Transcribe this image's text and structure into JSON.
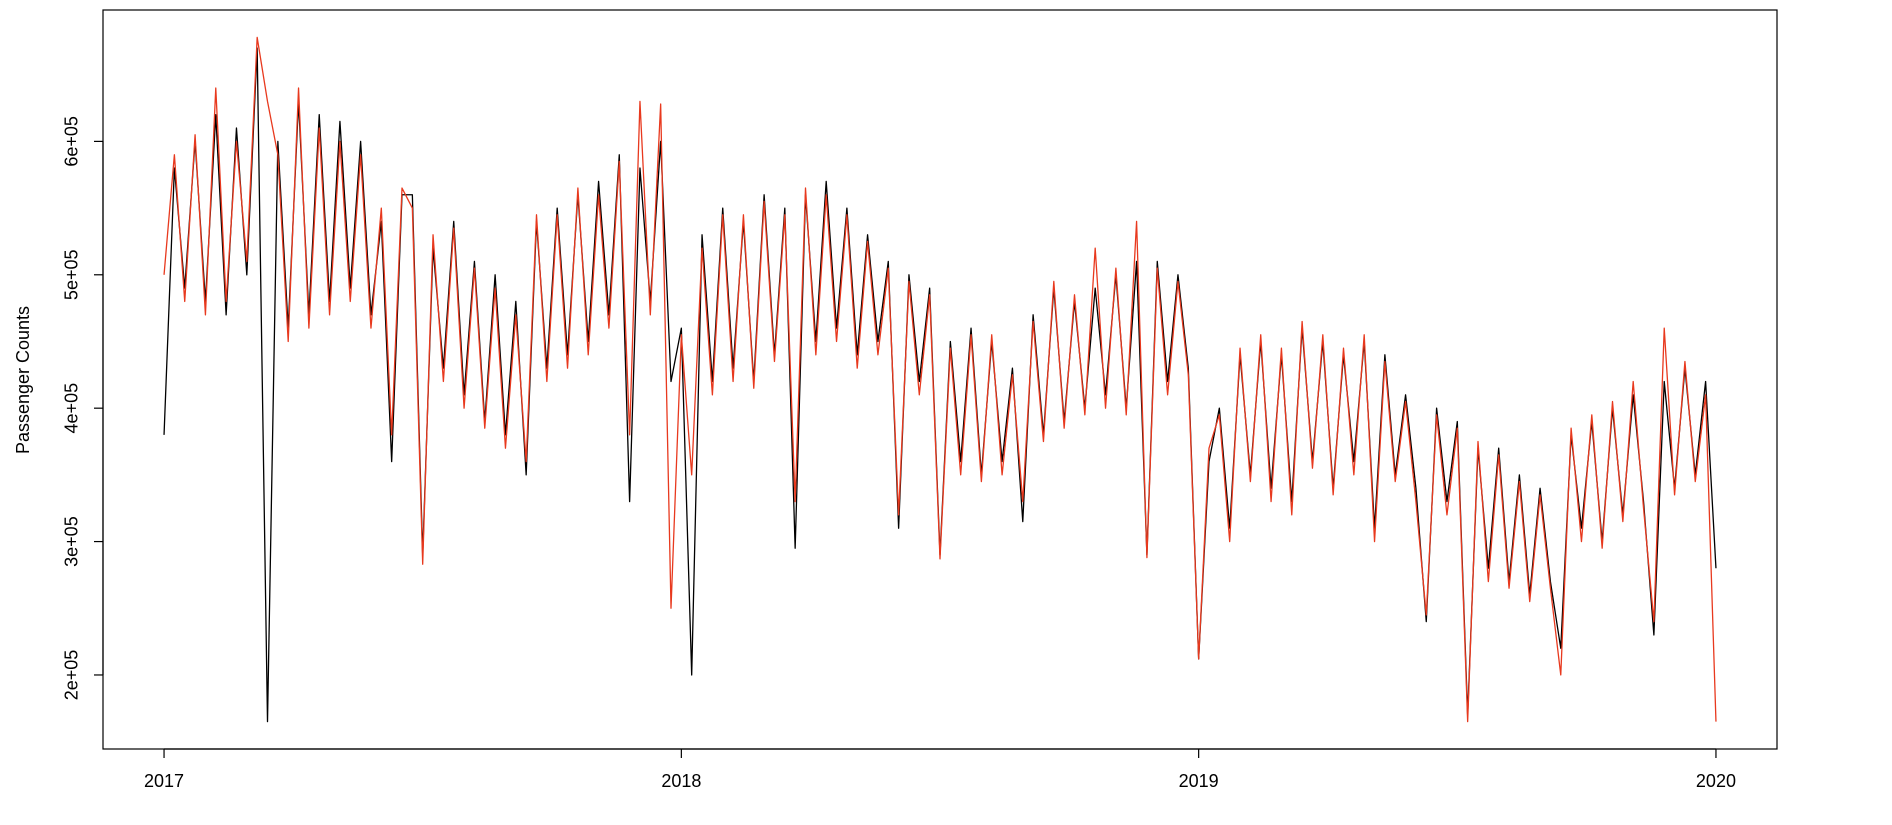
{
  "chart_data": {
    "type": "line",
    "y_label": "Passenger Counts",
    "xlim": [
      2016.882,
      2020.118
    ],
    "xticks": [
      2017,
      2018,
      2019,
      2020
    ],
    "ylim": [
      144500,
      698500
    ],
    "yticks": [
      {
        "value": 200000,
        "label": "2e+05"
      },
      {
        "value": 300000,
        "label": "3e+05"
      },
      {
        "value": 400000,
        "label": "4e+05"
      },
      {
        "value": 500000,
        "label": "5e+05"
      },
      {
        "value": 600000,
        "label": "6e+05"
      }
    ],
    "grid": false,
    "x": [
      2017,
      2017.02,
      2017.04,
      2017.06,
      2017.08,
      2017.1,
      2017.12,
      2017.14,
      2017.16,
      2017.18,
      2017.2,
      2017.22,
      2017.24,
      2017.26,
      2017.28,
      2017.3,
      2017.32,
      2017.34,
      2017.36,
      2017.38,
      2017.4,
      2017.42,
      2017.44,
      2017.46,
      2017.48,
      2017.5,
      2017.52,
      2017.54,
      2017.56,
      2017.58,
      2017.6,
      2017.62,
      2017.64,
      2017.66,
      2017.68,
      2017.7,
      2017.72,
      2017.74,
      2017.76,
      2017.78,
      2017.8,
      2017.82,
      2017.84,
      2017.86,
      2017.88,
      2017.9,
      2017.92,
      2017.94,
      2017.96,
      2017.98,
      2018,
      2018.02,
      2018.04,
      2018.06,
      2018.08,
      2018.1,
      2018.12,
      2018.14,
      2018.16,
      2018.18,
      2018.2,
      2018.22,
      2018.24,
      2018.26,
      2018.28,
      2018.3,
      2018.32,
      2018.34,
      2018.36,
      2018.38,
      2018.4,
      2018.42,
      2018.44,
      2018.46,
      2018.48,
      2018.5,
      2018.52,
      2018.54,
      2018.56,
      2018.58,
      2018.6,
      2018.62,
      2018.64,
      2018.66,
      2018.68,
      2018.7,
      2018.72,
      2018.74,
      2018.76,
      2018.78,
      2018.8,
      2018.82,
      2018.84,
      2018.86,
      2018.88,
      2018.9,
      2018.92,
      2018.94,
      2018.96,
      2018.98,
      2019,
      2019.02,
      2019.04,
      2019.06,
      2019.08,
      2019.1,
      2019.12,
      2019.14,
      2019.16,
      2019.18,
      2019.2,
      2019.22,
      2019.24,
      2019.26,
      2019.28,
      2019.3,
      2019.32,
      2019.34,
      2019.36,
      2019.38,
      2019.4,
      2019.42,
      2019.44,
      2019.46,
      2019.48,
      2019.5,
      2019.52,
      2019.54,
      2019.56,
      2019.58,
      2019.6,
      2019.62,
      2019.64,
      2019.66,
      2019.68,
      2019.7,
      2019.72,
      2019.74,
      2019.76,
      2019.78,
      2019.8,
      2019.82,
      2019.84,
      2019.86,
      2019.88,
      2019.9,
      2019.92,
      2019.94,
      2019.96,
      2019.98,
      2020
    ],
    "series": [
      {
        "color": "#000000",
        "values": [
          380000,
          580000,
          490000,
          600000,
          480000,
          620000,
          470000,
          610000,
          500000,
          670000,
          165000,
          600000,
          460000,
          630000,
          470000,
          620000,
          480000,
          615000,
          490000,
          600000,
          470000,
          540000,
          360000,
          560000,
          560000,
          290000,
          520000,
          430000,
          540000,
          410000,
          510000,
          390000,
          500000,
          380000,
          480000,
          350000,
          540000,
          430000,
          550000,
          440000,
          560000,
          450000,
          570000,
          470000,
          590000,
          330000,
          580000,
          480000,
          600000,
          420000,
          460000,
          200000,
          530000,
          420000,
          550000,
          430000,
          540000,
          420000,
          560000,
          440000,
          550000,
          295000,
          560000,
          450000,
          570000,
          460000,
          550000,
          440000,
          530000,
          450000,
          510000,
          310000,
          500000,
          420000,
          490000,
          290000,
          450000,
          360000,
          460000,
          350000,
          450000,
          360000,
          430000,
          315000,
          470000,
          380000,
          490000,
          390000,
          480000,
          400000,
          490000,
          410000,
          500000,
          400000,
          510000,
          290000,
          510000,
          420000,
          500000,
          430000,
          212000,
          360000,
          400000,
          310000,
          440000,
          350000,
          450000,
          340000,
          440000,
          330000,
          460000,
          360000,
          450000,
          340000,
          440000,
          360000,
          450000,
          310000,
          440000,
          350000,
          410000,
          340000,
          240000,
          400000,
          330000,
          390000,
          170000,
          370000,
          280000,
          370000,
          270000,
          350000,
          260000,
          340000,
          270000,
          220000,
          380000,
          310000,
          390000,
          300000,
          400000,
          320000,
          410000,
          330000,
          230000,
          420000,
          340000,
          430000,
          350000,
          420000,
          280000
        ]
      },
      {
        "color": "#e8391e",
        "values": [
          500000,
          590000,
          480000,
          605000,
          470000,
          640000,
          480000,
          600000,
          510000,
          678000,
          630000,
          590000,
          450000,
          640000,
          460000,
          610000,
          470000,
          600000,
          480000,
          590000,
          460000,
          550000,
          380000,
          565000,
          550000,
          283000,
          530000,
          420000,
          535000,
          400000,
          505000,
          385000,
          490000,
          370000,
          470000,
          360000,
          545000,
          420000,
          545000,
          430000,
          565000,
          440000,
          560000,
          460000,
          585000,
          380000,
          630000,
          470000,
          628000,
          250000,
          455000,
          350000,
          520000,
          410000,
          545000,
          420000,
          545000,
          415000,
          555000,
          435000,
          545000,
          330000,
          565000,
          440000,
          560000,
          450000,
          545000,
          430000,
          525000,
          440000,
          505000,
          320000,
          495000,
          410000,
          485000,
          287000,
          445000,
          350000,
          455000,
          345000,
          455000,
          350000,
          425000,
          330000,
          465000,
          375000,
          495000,
          385000,
          485000,
          395000,
          520000,
          400000,
          505000,
          395000,
          540000,
          288000,
          505000,
          410000,
          495000,
          425000,
          212000,
          370000,
          395000,
          300000,
          445000,
          345000,
          455000,
          330000,
          445000,
          320000,
          465000,
          355000,
          455000,
          335000,
          445000,
          350000,
          455000,
          300000,
          435000,
          345000,
          405000,
          330000,
          245000,
          395000,
          320000,
          385000,
          165000,
          375000,
          270000,
          365000,
          265000,
          345000,
          255000,
          335000,
          265000,
          200000,
          385000,
          300000,
          395000,
          295000,
          405000,
          315000,
          420000,
          325000,
          240000,
          460000,
          335000,
          435000,
          345000,
          410000,
          165000
        ]
      }
    ]
  }
}
